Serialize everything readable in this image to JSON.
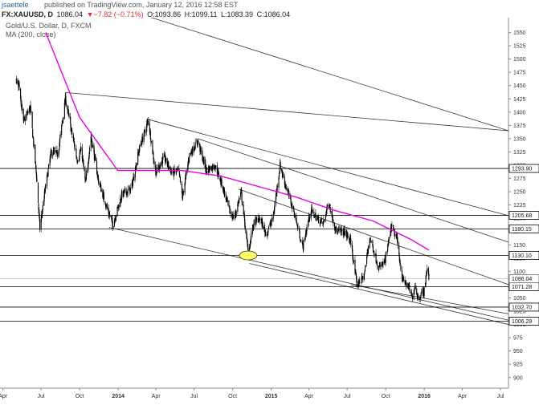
{
  "header": {
    "author": "jsaettele",
    "published": "published on TradingView.com, January 12, 2016 12:58 EST"
  },
  "ohlc": {
    "symbol": "FX:XAUUSD, D",
    "last": "1086.04",
    "change": "▼−7.82 (−0.71%)",
    "open": "O:1093.86",
    "high": "H:1099.11",
    "low": "L:1083.39",
    "close": "C:1086.04"
  },
  "legend": {
    "title": "Gold/U.S. Dollar, D, FXCM",
    "ma": "MA (200, close)"
  },
  "colors": {
    "ma": "#e600e6",
    "candle": "#000000",
    "tag_fill": "#ffffff",
    "highlight": "#ffff66"
  },
  "chart_data": {
    "type": "candlestick",
    "title": "Gold/U.S. Dollar, D, FXCM",
    "y_range": [
      880,
      1575
    ],
    "y_ticks": [
      900,
      925,
      950,
      975,
      1000,
      1025,
      1050,
      1075,
      1100,
      1125,
      1150,
      1175,
      1200,
      1225,
      1250,
      1275,
      1300,
      1325,
      1350,
      1375,
      1400,
      1425,
      1450,
      1475,
      1500,
      1525,
      1550
    ],
    "x_range": [
      "2013-03-25",
      "2016-07-20"
    ],
    "x_ticks": [
      {
        "label": "Apr",
        "date": "2013-04-01"
      },
      {
        "label": "Jul",
        "date": "2013-07-01"
      },
      {
        "label": "Oct",
        "date": "2013-10-01"
      },
      {
        "label": "2014",
        "date": "2014-01-01",
        "bold": true
      },
      {
        "label": "Apr",
        "date": "2014-04-01"
      },
      {
        "label": "Jul",
        "date": "2014-07-01"
      },
      {
        "label": "Oct",
        "date": "2014-10-01"
      },
      {
        "label": "2015",
        "date": "2015-01-01",
        "bold": true
      },
      {
        "label": "Apr",
        "date": "2015-04-01"
      },
      {
        "label": "Jul",
        "date": "2015-07-01"
      },
      {
        "label": "Oct",
        "date": "2015-10-01"
      },
      {
        "label": "2016",
        "date": "2016-01-01",
        "bold": true
      },
      {
        "label": "Apr",
        "date": "2016-04-01"
      },
      {
        "label": "Jul",
        "date": "2016-07-01"
      }
    ],
    "price_path": [
      [
        "2013-03-28",
        1600
      ],
      [
        "2013-04-08",
        1575
      ],
      [
        "2013-04-15",
        1340
      ],
      [
        "2013-04-26",
        1470
      ],
      [
        "2013-05-10",
        1450
      ],
      [
        "2013-05-20",
        1380
      ],
      [
        "2013-06-05",
        1410
      ],
      [
        "2013-06-20",
        1280
      ],
      [
        "2013-06-28",
        1180
      ],
      [
        "2013-07-08",
        1240
      ],
      [
        "2013-07-25",
        1325
      ],
      [
        "2013-08-10",
        1320
      ],
      [
        "2013-08-28",
        1425
      ],
      [
        "2013-09-10",
        1370
      ],
      [
        "2013-09-25",
        1310
      ],
      [
        "2013-10-05",
        1330
      ],
      [
        "2013-10-15",
        1265
      ],
      [
        "2013-10-28",
        1355
      ],
      [
        "2013-11-15",
        1270
      ],
      [
        "2013-12-05",
        1220
      ],
      [
        "2013-12-19",
        1188
      ],
      [
        "2014-01-10",
        1245
      ],
      [
        "2014-02-01",
        1255
      ],
      [
        "2014-02-20",
        1330
      ],
      [
        "2014-03-14",
        1385
      ],
      [
        "2014-03-31",
        1285
      ],
      [
        "2014-04-20",
        1315
      ],
      [
        "2014-05-10",
        1285
      ],
      [
        "2014-05-25",
        1290
      ],
      [
        "2014-06-03",
        1240
      ],
      [
        "2014-06-20",
        1320
      ],
      [
        "2014-07-10",
        1345
      ],
      [
        "2014-07-30",
        1290
      ],
      [
        "2014-08-20",
        1300
      ],
      [
        "2014-09-05",
        1265
      ],
      [
        "2014-09-25",
        1210
      ],
      [
        "2014-10-05",
        1200
      ],
      [
        "2014-10-21",
        1250
      ],
      [
        "2014-11-07",
        1135
      ],
      [
        "2014-11-20",
        1190
      ],
      [
        "2014-12-05",
        1200
      ],
      [
        "2014-12-20",
        1170
      ],
      [
        "2015-01-05",
        1200
      ],
      [
        "2015-01-22",
        1300
      ],
      [
        "2015-02-05",
        1260
      ],
      [
        "2015-02-25",
        1210
      ],
      [
        "2015-03-17",
        1145
      ],
      [
        "2015-04-05",
        1215
      ],
      [
        "2015-04-20",
        1200
      ],
      [
        "2015-05-05",
        1190
      ],
      [
        "2015-05-18",
        1230
      ],
      [
        "2015-06-05",
        1175
      ],
      [
        "2015-06-25",
        1175
      ],
      [
        "2015-07-10",
        1155
      ],
      [
        "2015-07-24",
        1075
      ],
      [
        "2015-08-10",
        1090
      ],
      [
        "2015-08-24",
        1165
      ],
      [
        "2015-09-15",
        1105
      ],
      [
        "2015-09-30",
        1120
      ],
      [
        "2015-10-15",
        1185
      ],
      [
        "2015-10-28",
        1160
      ],
      [
        "2015-11-10",
        1085
      ],
      [
        "2015-11-25",
        1070
      ],
      [
        "2015-12-03",
        1050
      ],
      [
        "2015-12-10",
        1075
      ],
      [
        "2015-12-17",
        1050
      ],
      [
        "2015-12-31",
        1062
      ],
      [
        "2016-01-06",
        1093
      ],
      [
        "2016-01-08",
        1108
      ],
      [
        "2016-01-12",
        1086
      ]
    ],
    "ma200": [
      [
        "2013-07-12",
        1550
      ],
      [
        "2013-10-01",
        1390
      ],
      [
        "2013-12-31",
        1290
      ],
      [
        "2014-03-15",
        1290
      ],
      [
        "2014-06-01",
        1290
      ],
      [
        "2014-09-01",
        1280
      ],
      [
        "2014-12-01",
        1260
      ],
      [
        "2015-03-01",
        1240
      ],
      [
        "2015-06-01",
        1215
      ],
      [
        "2015-09-01",
        1195
      ],
      [
        "2015-12-01",
        1160
      ],
      [
        "2016-01-12",
        1140
      ]
    ],
    "levels": [
      1293.9,
      1205.68,
      1180.15,
      1130.1,
      1071.28,
      1032.7,
      1006.29
    ],
    "level_tags": [
      "1293.90",
      "1205.68",
      "1180.15",
      "1130.10",
      "1071.28",
      "1032.70",
      "1006.29"
    ],
    "last_price": 1086.04,
    "last_tag": "1086.04",
    "trendlines": [
      [
        "2013-08-28",
        1437,
        "2016-07-20",
        1365
      ],
      [
        "2014-03-10",
        1387,
        "2016-07-20",
        1205
      ],
      [
        "2014-07-10",
        1350,
        "2016-07-20",
        1155
      ],
      [
        "2014-10-15",
        1255,
        "2016-07-20",
        1075
      ],
      [
        "2013-12-10",
        1183,
        "2016-07-20",
        1008
      ],
      [
        "2014-11-10",
        1115,
        "2016-07-20",
        1000
      ],
      [
        "2015-07-10",
        1075,
        "2016-07-20",
        1020
      ],
      [
        "2014-01-01",
        1598,
        "2016-07-20",
        1365
      ]
    ],
    "highlight": {
      "date": "2014-11-07",
      "price": 1130
    }
  }
}
